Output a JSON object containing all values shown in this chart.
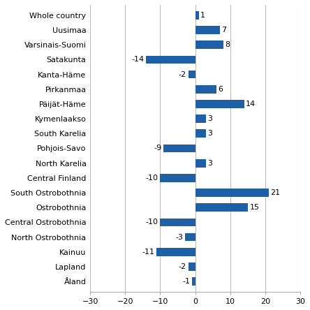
{
  "categories": [
    "Whole country",
    "Uusimaa",
    "Varsinais-Suomi",
    "Satakunta",
    "Kanta-Häme",
    "Pirkanmaa",
    "Päijät-Häme",
    "Kymenlaakso",
    "South Karelia",
    "Pohjois-Savo",
    "North Karelia",
    "Central Finland",
    "South Ostrobothnia",
    "Ostrobothnia",
    "Central Ostrobothnia",
    "North Ostrobothnia",
    "Kainuu",
    "Lapland",
    "Åland"
  ],
  "values": [
    1,
    7,
    8,
    -14,
    -2,
    6,
    14,
    3,
    3,
    -9,
    3,
    -10,
    21,
    15,
    -10,
    -3,
    -11,
    -2,
    -1
  ],
  "bar_color": "#1F5FA6",
  "xlim": [
    -30,
    30
  ],
  "xticks": [
    -30,
    -20,
    -10,
    0,
    10,
    20,
    30
  ],
  "background_color": "#ffffff",
  "grid_color": "#bbbbbb",
  "label_fontsize": 8,
  "value_fontsize": 8,
  "bar_height": 0.55
}
